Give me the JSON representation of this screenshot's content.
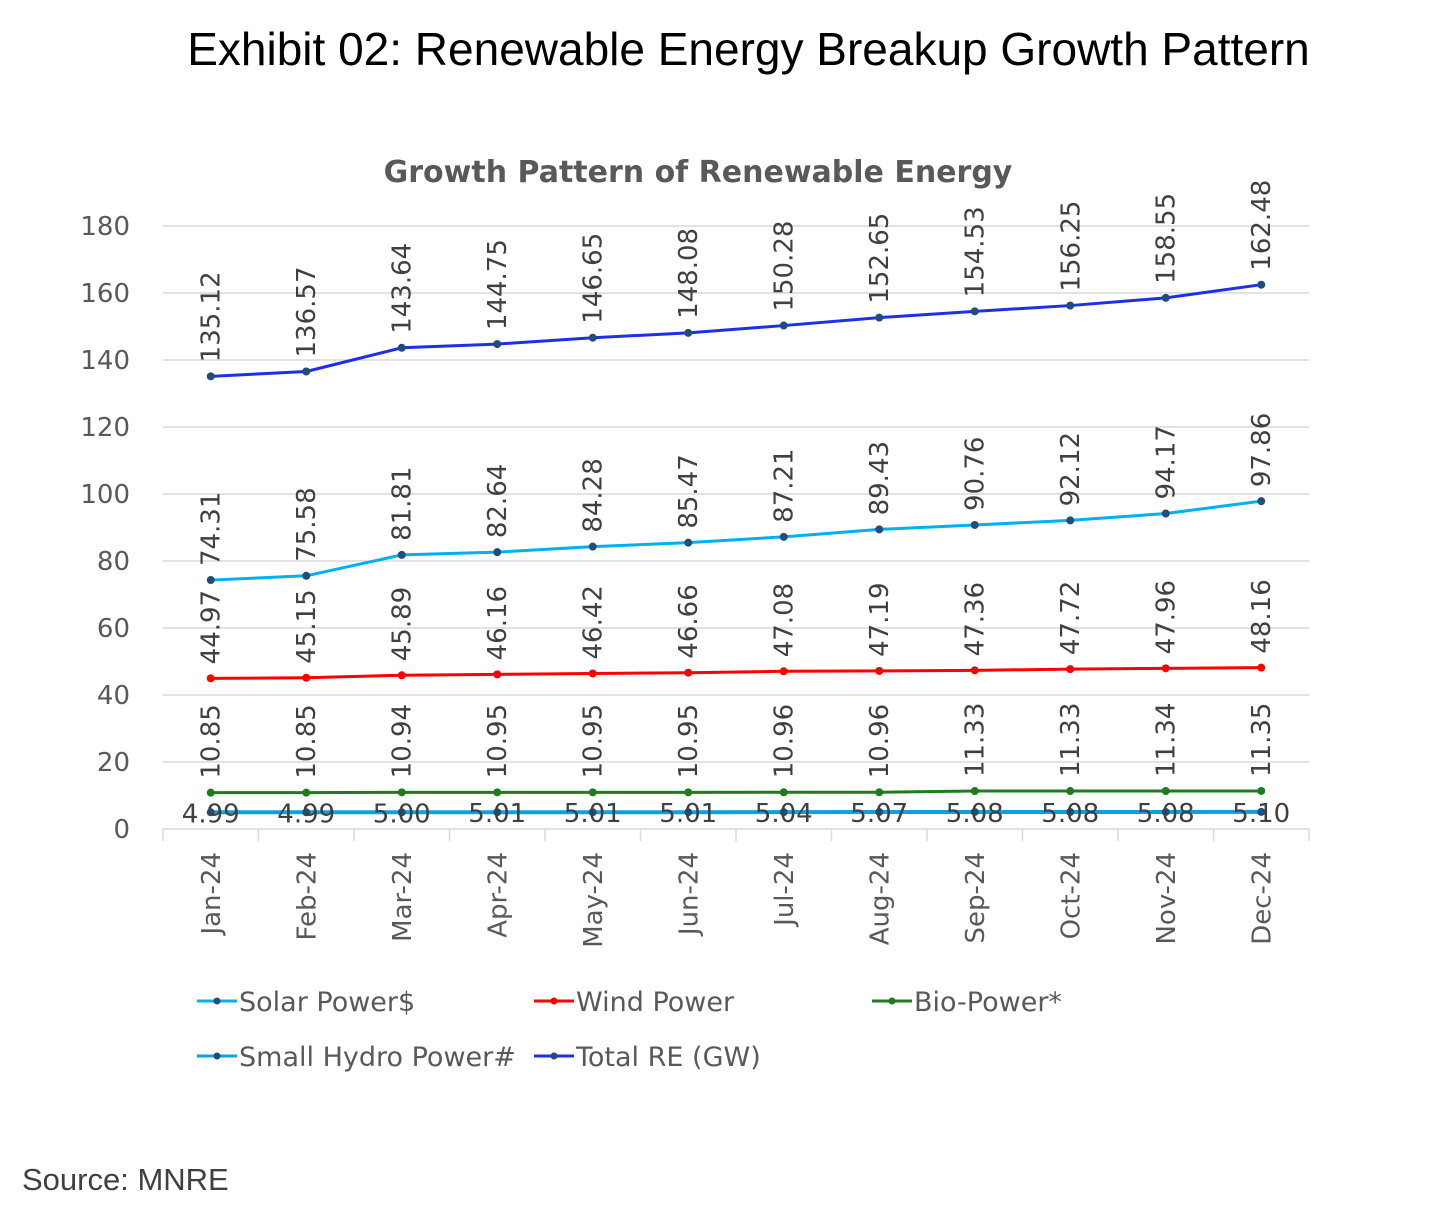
{
  "page": {
    "exhibit_title": "Exhibit 02: Renewable Energy Breakup Growth Pattern",
    "source": "Source: MNRE"
  },
  "chart_data": {
    "type": "line",
    "title": "Growth Pattern of Renewable Energy",
    "xlabel": "",
    "ylabel": "",
    "ylim": [
      0,
      180
    ],
    "yticks": [
      0,
      20,
      40,
      60,
      80,
      100,
      120,
      140,
      160,
      180
    ],
    "grid": true,
    "legend_position": "bottom",
    "categories": [
      "Jan-24",
      "Feb-24",
      "Mar-24",
      "Apr-24",
      "May-24",
      "Jun-24",
      "Jul-24",
      "Aug-24",
      "Sep-24",
      "Oct-24",
      "Nov-24",
      "Dec-24"
    ],
    "series": [
      {
        "name": "Solar Power$",
        "color": "#00B0F0",
        "values": [
          74.31,
          75.58,
          81.81,
          82.64,
          84.28,
          85.47,
          87.21,
          89.43,
          90.76,
          92.12,
          94.17,
          97.86
        ],
        "label_pos": "above"
      },
      {
        "name": "Wind Power",
        "color": "#FF0000",
        "values": [
          44.97,
          45.15,
          45.89,
          46.16,
          46.42,
          46.66,
          47.08,
          47.19,
          47.36,
          47.72,
          47.96,
          48.16
        ],
        "label_pos": "above"
      },
      {
        "name": "Bio-Power*",
        "color": "#1E7B1E",
        "values": [
          10.85,
          10.85,
          10.94,
          10.95,
          10.95,
          10.95,
          10.96,
          10.96,
          11.33,
          11.33,
          11.34,
          11.35
        ],
        "label_pos": "above"
      },
      {
        "name": "Small Hydro Power#",
        "color": "#0FA0E0",
        "values": [
          4.99,
          4.99,
          5.0,
          5.01,
          5.01,
          5.01,
          5.04,
          5.07,
          5.08,
          5.08,
          5.08,
          5.1
        ],
        "label_pos": "center"
      },
      {
        "name": "Total RE (GW)",
        "color": "#1F2FE8",
        "values": [
          135.12,
          136.57,
          143.64,
          144.75,
          146.65,
          148.08,
          150.28,
          152.65,
          154.53,
          156.25,
          158.55,
          162.48
        ],
        "label_pos": "above"
      }
    ]
  },
  "colors": {
    "gridline": "#D9D9D9",
    "marker": "#1F4E79",
    "axis_text": "#595959"
  }
}
